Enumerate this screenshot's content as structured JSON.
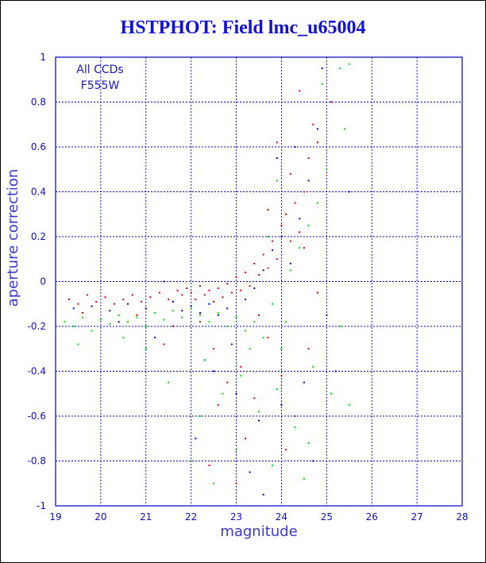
{
  "chart_data": {
    "type": "scatter",
    "title": "HSTPHOT: Field lmc_u65004",
    "xlabel": "magnitude",
    "ylabel": "aperture correction",
    "xlim": [
      19,
      28
    ],
    "ylim": [
      -1,
      1
    ],
    "x_ticks": [
      "19",
      "20",
      "21",
      "22",
      "23",
      "24",
      "25",
      "26",
      "27",
      "28"
    ],
    "y_ticks": [
      "-1",
      "-0.8",
      "-0.6",
      "-0.4",
      "-0.2",
      "0",
      "0.2",
      "0.4",
      "0.6",
      "0.8",
      "1"
    ],
    "grid": true,
    "legend_lines": [
      "All CCDs",
      "F555W"
    ],
    "legend_position": "top-left",
    "series": [
      {
        "color": "#e00000",
        "points": [
          [
            19.3,
            -0.08
          ],
          [
            19.5,
            -0.1
          ],
          [
            19.7,
            -0.06
          ],
          [
            19.9,
            -0.09
          ],
          [
            20.1,
            -0.07
          ],
          [
            20.3,
            -0.1
          ],
          [
            20.5,
            -0.08
          ],
          [
            20.7,
            -0.06
          ],
          [
            20.9,
            -0.09
          ],
          [
            21.1,
            -0.07
          ],
          [
            21.3,
            -0.05
          ],
          [
            21.5,
            -0.08
          ],
          [
            21.7,
            -0.04
          ],
          [
            21.8,
            -0.06
          ],
          [
            21.9,
            -0.03
          ],
          [
            22.0,
            -0.05
          ],
          [
            22.1,
            -0.08
          ],
          [
            22.2,
            -0.02
          ],
          [
            22.3,
            -0.06
          ],
          [
            22.4,
            -0.04
          ],
          [
            22.5,
            -0.09
          ],
          [
            22.6,
            -0.03
          ],
          [
            22.7,
            -0.07
          ],
          [
            22.8,
            -0.01
          ],
          [
            22.9,
            -0.05
          ],
          [
            23.0,
            0.02
          ],
          [
            23.1,
            -0.04
          ],
          [
            23.2,
            0.04
          ],
          [
            23.3,
            -0.02
          ],
          [
            23.4,
            0.08
          ],
          [
            23.5,
            0.03
          ],
          [
            23.6,
            0.12
          ],
          [
            23.7,
            0.06
          ],
          [
            23.8,
            0.18
          ],
          [
            23.9,
            0.1
          ],
          [
            24.0,
            0.25
          ],
          [
            24.1,
            0.3
          ],
          [
            24.2,
            0.18
          ],
          [
            24.3,
            0.35
          ],
          [
            24.4,
            0.22
          ],
          [
            24.5,
            0.4
          ],
          [
            24.6,
            0.55
          ],
          [
            24.7,
            0.7
          ],
          [
            24.8,
            0.62
          ],
          [
            24.2,
            0.48
          ],
          [
            23.9,
            0.62
          ],
          [
            23.7,
            0.32
          ],
          [
            22.5,
            -0.3
          ],
          [
            22.8,
            -0.45
          ],
          [
            23.1,
            -0.38
          ],
          [
            23.4,
            -0.52
          ],
          [
            23.7,
            -0.25
          ],
          [
            24.0,
            -0.42
          ],
          [
            24.3,
            -0.6
          ],
          [
            22.6,
            -0.55
          ],
          [
            23.2,
            -0.7
          ],
          [
            21.6,
            -0.2
          ],
          [
            20.8,
            -0.15
          ],
          [
            19.6,
            -0.14
          ],
          [
            24.5,
            0.15
          ],
          [
            24.8,
            -0.05
          ],
          [
            25.1,
            0.8
          ],
          [
            24.4,
            0.85
          ],
          [
            21.4,
            -0.28
          ],
          [
            22.2,
            -0.18
          ],
          [
            23.5,
            -0.15
          ],
          [
            24.6,
            -0.3
          ],
          [
            23.0,
            -0.9
          ],
          [
            24.1,
            -0.75
          ],
          [
            22.4,
            -0.82
          ]
        ]
      },
      {
        "color": "#0000d0",
        "points": [
          [
            19.4,
            -0.12
          ],
          [
            19.8,
            -0.11
          ],
          [
            20.2,
            -0.13
          ],
          [
            20.6,
            -0.1
          ],
          [
            21.0,
            -0.12
          ],
          [
            21.4,
            0.0
          ],
          [
            21.6,
            -0.09
          ],
          [
            21.8,
            -0.13
          ],
          [
            22.0,
            -0.11
          ],
          [
            22.2,
            -0.14
          ],
          [
            22.4,
            -0.1
          ],
          [
            22.6,
            -0.15
          ],
          [
            22.8,
            -0.12
          ],
          [
            23.0,
            -0.16
          ],
          [
            23.2,
            -0.08
          ],
          [
            23.4,
            -0.03
          ],
          [
            23.6,
            0.05
          ],
          [
            23.8,
            0.14
          ],
          [
            24.0,
            0.2
          ],
          [
            24.2,
            0.08
          ],
          [
            24.4,
            0.28
          ],
          [
            24.6,
            0.45
          ],
          [
            24.8,
            0.68
          ],
          [
            25.5,
            0.4
          ],
          [
            24.3,
            0.6
          ],
          [
            23.9,
            0.55
          ],
          [
            22.5,
            -0.4
          ],
          [
            23.0,
            -0.5
          ],
          [
            23.5,
            -0.62
          ],
          [
            24.0,
            -0.55
          ],
          [
            22.1,
            -0.7
          ],
          [
            23.3,
            -0.85
          ],
          [
            24.5,
            -0.45
          ],
          [
            25.2,
            -0.4
          ],
          [
            21.2,
            -0.25
          ],
          [
            20.4,
            -0.18
          ],
          [
            22.9,
            -0.28
          ],
          [
            24.7,
            -0.8
          ],
          [
            25.0,
            -0.15
          ],
          [
            23.6,
            -0.95
          ],
          [
            22.3,
            -0.35
          ],
          [
            24.9,
            0.95
          ]
        ]
      },
      {
        "color": "#00dd00",
        "points": [
          [
            19.2,
            -0.18
          ],
          [
            19.4,
            -0.2
          ],
          [
            19.6,
            -0.16
          ],
          [
            19.8,
            -0.22
          ],
          [
            20.0,
            -0.17
          ],
          [
            20.2,
            -0.19
          ],
          [
            20.4,
            -0.15
          ],
          [
            20.6,
            -0.18
          ],
          [
            20.8,
            -0.16
          ],
          [
            21.0,
            -0.2
          ],
          [
            21.2,
            -0.14
          ],
          [
            21.4,
            -0.17
          ],
          [
            21.6,
            -0.13
          ],
          [
            21.8,
            -0.16
          ],
          [
            22.0,
            -0.12
          ],
          [
            22.2,
            -0.15
          ],
          [
            22.4,
            -0.18
          ],
          [
            22.6,
            -0.14
          ],
          [
            22.8,
            -0.2
          ],
          [
            23.0,
            -0.16
          ],
          [
            23.2,
            -0.22
          ],
          [
            23.4,
            -0.18
          ],
          [
            23.6,
            -0.25
          ],
          [
            23.8,
            -0.1
          ],
          [
            24.0,
            -0.3
          ],
          [
            24.2,
            0.05
          ],
          [
            24.4,
            0.15
          ],
          [
            24.6,
            0.25
          ],
          [
            24.8,
            0.35
          ],
          [
            25.0,
            0.5
          ],
          [
            25.3,
            0.95
          ],
          [
            25.5,
            0.97
          ],
          [
            24.9,
            0.88
          ],
          [
            23.9,
            0.45
          ],
          [
            23.7,
            0.2
          ],
          [
            22.3,
            -0.35
          ],
          [
            22.7,
            -0.5
          ],
          [
            23.1,
            -0.42
          ],
          [
            23.5,
            -0.58
          ],
          [
            23.9,
            -0.48
          ],
          [
            24.3,
            -0.65
          ],
          [
            24.7,
            -0.38
          ],
          [
            25.1,
            -0.5
          ],
          [
            25.5,
            -0.55
          ],
          [
            22.0,
            -0.8
          ],
          [
            22.5,
            -0.9
          ],
          [
            23.0,
            -0.75
          ],
          [
            23.8,
            -0.82
          ],
          [
            24.6,
            -0.72
          ],
          [
            21.5,
            -0.45
          ],
          [
            21.0,
            -0.3
          ],
          [
            20.5,
            -0.25
          ],
          [
            19.5,
            -0.28
          ],
          [
            25.3,
            -0.2
          ],
          [
            24.5,
            -0.88
          ],
          [
            22.2,
            -0.6
          ],
          [
            23.3,
            -0.3
          ],
          [
            24.1,
            -0.18
          ],
          [
            25.4,
            0.68
          ]
        ]
      }
    ]
  }
}
